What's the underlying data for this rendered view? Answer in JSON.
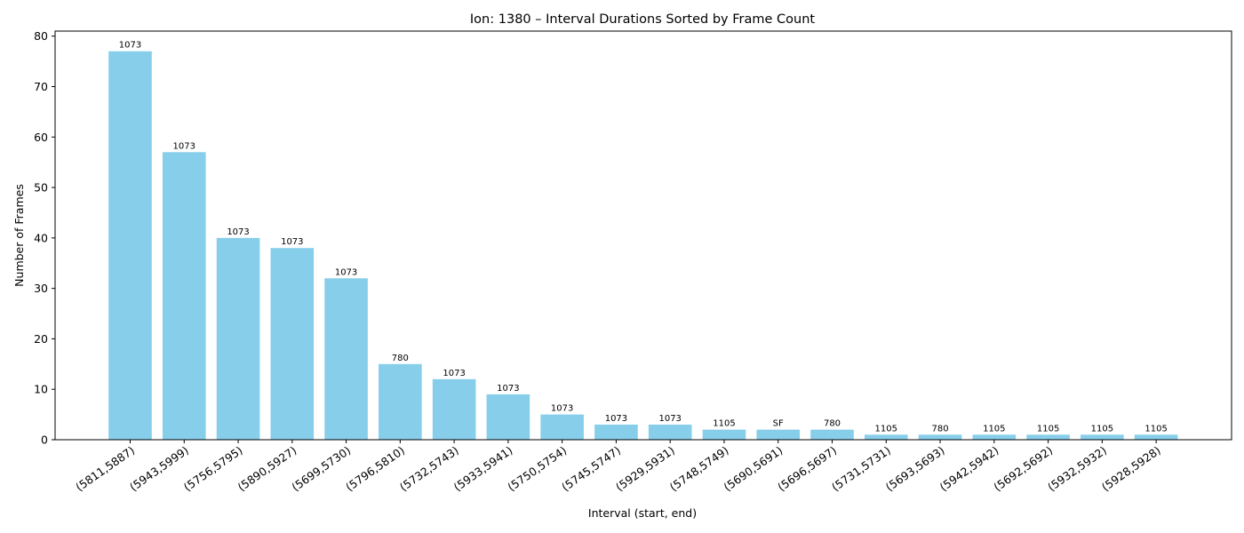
{
  "chart_data": {
    "type": "bar",
    "title": "Ion: 1380 – Interval Durations Sorted by Frame Count",
    "xlabel": "Interval (start, end)",
    "ylabel": "Number of Frames",
    "ylim": [
      0,
      81
    ],
    "yticks": [
      0,
      10,
      20,
      30,
      40,
      50,
      60,
      70,
      80
    ],
    "grid": false,
    "bar_color": "#87ceeb",
    "categories": [
      "(5811,5887)",
      "(5943,5999)",
      "(5756,5795)",
      "(5890,5927)",
      "(5699,5730)",
      "(5796,5810)",
      "(5732,5743)",
      "(5933,5941)",
      "(5750,5754)",
      "(5745,5747)",
      "(5929,5931)",
      "(5748,5749)",
      "(5690,5691)",
      "(5696,5697)",
      "(5731,5731)",
      "(5693,5693)",
      "(5942,5942)",
      "(5692,5692)",
      "(5932,5932)",
      "(5928,5928)"
    ],
    "values": [
      77,
      57,
      40,
      38,
      32,
      15,
      12,
      9,
      5,
      3,
      3,
      2,
      2,
      2,
      1,
      1,
      1,
      1,
      1,
      1
    ],
    "bar_labels": [
      "1073",
      "1073",
      "1073",
      "1073",
      "1073",
      "780",
      "1073",
      "1073",
      "1073",
      "1073",
      "1073",
      "1105",
      "SF",
      "780",
      "1105",
      "780",
      "1105",
      "1105",
      "1105",
      "1105"
    ]
  }
}
